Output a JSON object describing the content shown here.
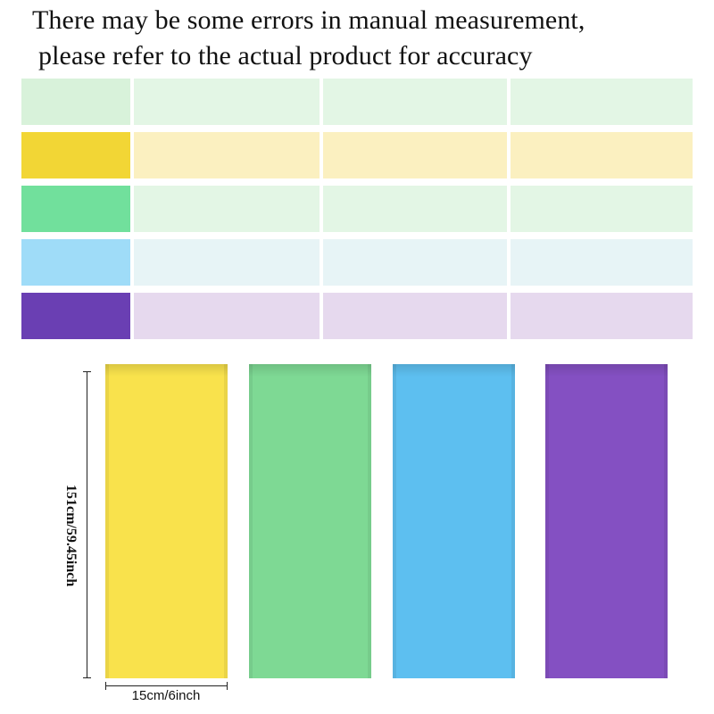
{
  "notice": {
    "line1": "There may be some errors in manual measurement,",
    "line2": "please refer to the actual product for accuracy"
  },
  "table": {
    "rows": [
      {
        "swatch_color": "#d8f2da",
        "cell_color": "#e3f6e5"
      },
      {
        "swatch_color": "#f2d635",
        "cell_color": "#fbf0c0"
      },
      {
        "swatch_color": "#71e09c",
        "cell_color": "#e3f6e5"
      },
      {
        "swatch_color": "#9fdcf8",
        "cell_color": "#e7f4f6"
      },
      {
        "swatch_color": "#6a3fb3",
        "cell_color": "#e6d9ee"
      }
    ]
  },
  "bands": [
    {
      "color": "#f9e24c"
    },
    {
      "color": "#7ed994"
    },
    {
      "color": "#5dbff0"
    },
    {
      "color": "#8450c2"
    }
  ],
  "dimensions": {
    "length_label": "151cm/59.45inch",
    "width_label": "15cm/6inch"
  }
}
